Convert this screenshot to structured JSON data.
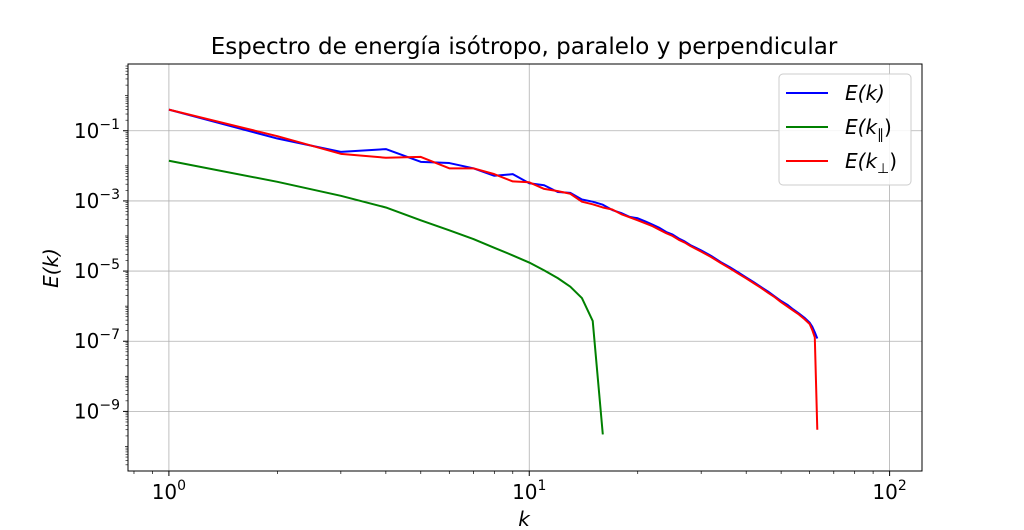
{
  "chart_data": {
    "type": "line",
    "title": "Espectro de energía isótropo, paralelo y perpendicular",
    "xlabel": "k",
    "ylabel": "E(k)",
    "xscale": "log",
    "yscale": "log",
    "xlim": [
      0.77,
      123
    ],
    "ylim": [
      2e-11,
      8
    ],
    "grid": true,
    "legend_position": "top-right",
    "x_ticks": [
      {
        "value": 1,
        "label_base": "10",
        "label_exp": "0"
      },
      {
        "value": 10,
        "label_base": "10",
        "label_exp": "1"
      },
      {
        "value": 100,
        "label_base": "10",
        "label_exp": "2"
      }
    ],
    "y_ticks": [
      {
        "value": 0.1,
        "label_base": "10",
        "label_exp": "−1"
      },
      {
        "value": 0.001,
        "label_base": "10",
        "label_exp": "−3"
      },
      {
        "value": 1e-05,
        "label_base": "10",
        "label_exp": "−5"
      },
      {
        "value": 1e-07,
        "label_base": "10",
        "label_exp": "−7"
      },
      {
        "value": 1e-09,
        "label_base": "10",
        "label_exp": "−9"
      }
    ],
    "series": [
      {
        "name": "E(k)",
        "legend_main": "E(k)",
        "legend_sub": "",
        "color": "#0000ff",
        "x": [
          1,
          2,
          3,
          4,
          5,
          6,
          7,
          8,
          9,
          10,
          11,
          12,
          13,
          14,
          15,
          16,
          17,
          18,
          19,
          20,
          21,
          22,
          23,
          24,
          25,
          26,
          27,
          28,
          29,
          30,
          32,
          34,
          36,
          38,
          40,
          42,
          44,
          46,
          48,
          50,
          52,
          54,
          56,
          58,
          60,
          61,
          62,
          63
        ],
        "y": [
          0.4,
          0.06,
          0.025,
          0.03,
          0.013,
          0.012,
          0.0085,
          0.0052,
          0.0058,
          0.0032,
          0.0028,
          0.0018,
          0.0017,
          0.0011,
          0.00095,
          0.00078,
          0.00055,
          0.00045,
          0.00035,
          0.00032,
          0.00026,
          0.00021,
          0.00017,
          0.00013,
          0.00011,
          8.5e-05,
          7e-05,
          5.5e-05,
          4.6e-05,
          3.9e-05,
          2.7e-05,
          1.8e-05,
          1.3e-05,
          9.2e-06,
          6.6e-06,
          4.8e-06,
          3.5e-06,
          2.6e-06,
          1.9e-06,
          1.4e-06,
          1.1e-06,
          8.1e-07,
          6.2e-07,
          4.7e-07,
          3.4e-07,
          2.6e-07,
          1.8e-07,
          1.2e-07
        ]
      },
      {
        "name": "E(k∥)",
        "legend_main": "E(k",
        "legend_sub": "∥",
        "color": "#008000",
        "x": [
          1,
          2,
          3,
          4,
          5,
          6,
          7,
          8,
          9,
          10,
          11,
          12,
          13,
          14,
          15,
          16
        ],
        "y": [
          0.014,
          0.0035,
          0.0014,
          0.00065,
          0.00028,
          0.000145,
          8.2e-05,
          4.6e-05,
          2.8e-05,
          1.75e-05,
          1.05e-05,
          6.3e-06,
          3.6e-06,
          1.7e-06,
          3.8e-07,
          2.2e-10
        ]
      },
      {
        "name": "E(k⊥)",
        "legend_main": "E(k",
        "legend_sub": "⊥",
        "color": "#ff0000",
        "x": [
          1,
          2,
          3,
          4,
          5,
          6,
          7,
          8,
          9,
          10,
          11,
          12,
          13,
          14,
          15,
          16,
          17,
          18,
          19,
          20,
          21,
          22,
          23,
          24,
          25,
          26,
          27,
          28,
          29,
          30,
          32,
          34,
          36,
          38,
          40,
          42,
          44,
          46,
          48,
          50,
          52,
          54,
          56,
          58,
          60,
          61,
          62,
          63
        ],
        "y": [
          0.4,
          0.07,
          0.022,
          0.017,
          0.018,
          0.0085,
          0.0085,
          0.0058,
          0.0036,
          0.0034,
          0.0022,
          0.0019,
          0.0016,
          0.00095,
          0.0008,
          0.00065,
          0.00057,
          0.00042,
          0.00034,
          0.00028,
          0.00023,
          0.00019,
          0.00015,
          0.00012,
          0.0001,
          7.8e-05,
          6.5e-05,
          5.2e-05,
          4.3e-05,
          3.6e-05,
          2.5e-05,
          1.7e-05,
          1.2e-05,
          8.5e-06,
          6.2e-06,
          4.5e-06,
          3.3e-06,
          2.4e-06,
          1.8e-06,
          1.3e-06,
          9.8e-07,
          7.5e-07,
          5.8e-07,
          4.3e-07,
          3.1e-07,
          2.1e-07,
          1.3e-07,
          3e-10
        ]
      }
    ]
  }
}
